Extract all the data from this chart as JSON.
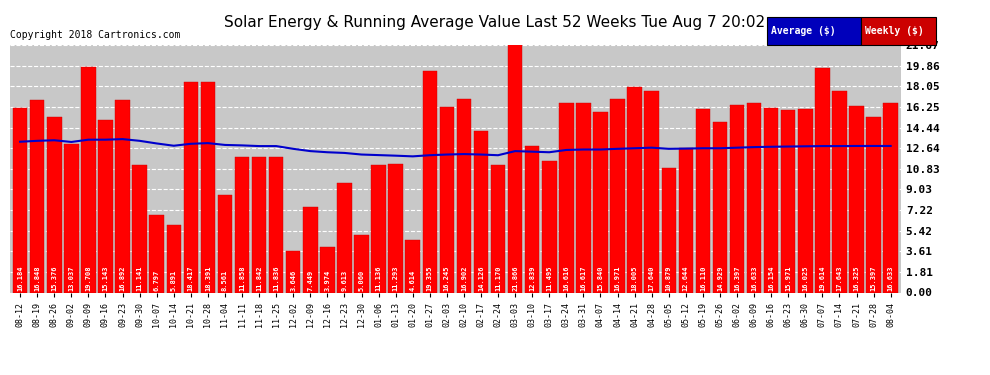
{
  "title": "Solar Energy & Running Average Value Last 52 Weeks Tue Aug 7 20:02",
  "copyright": "Copyright 2018 Cartronics.com",
  "bar_color": "#ff0000",
  "avg_line_color": "#0000cc",
  "background_color": "#ffffff",
  "plot_bg_color": "#c8c8c8",
  "grid_color": "#ffffff",
  "ytick_values": [
    0.0,
    1.81,
    3.61,
    5.42,
    7.22,
    9.03,
    10.83,
    12.64,
    14.44,
    16.25,
    18.05,
    19.86,
    21.67
  ],
  "ytick_labels": [
    "0.00",
    "1.81",
    "3.61",
    "5.42",
    "7.22",
    "9.03",
    "10.83",
    "12.64",
    "14.44",
    "16.25",
    "18.05",
    "19.86",
    "21.67"
  ],
  "categories": [
    "08-12",
    "08-19",
    "08-26",
    "09-02",
    "09-09",
    "09-16",
    "09-23",
    "09-30",
    "10-07",
    "10-14",
    "10-21",
    "10-28",
    "11-04",
    "11-11",
    "11-18",
    "11-25",
    "12-02",
    "12-09",
    "12-16",
    "12-23",
    "12-30",
    "01-06",
    "01-13",
    "01-20",
    "01-27",
    "02-03",
    "02-10",
    "02-17",
    "02-24",
    "03-03",
    "03-10",
    "03-17",
    "03-24",
    "03-31",
    "04-07",
    "04-14",
    "04-21",
    "04-28",
    "05-05",
    "05-12",
    "05-19",
    "05-26",
    "06-02",
    "06-09",
    "06-16",
    "06-23",
    "06-30",
    "07-07",
    "07-14",
    "07-21",
    "07-28",
    "08-04"
  ],
  "bar_values": [
    16.184,
    16.848,
    15.376,
    13.037,
    19.708,
    15.143,
    16.892,
    11.141,
    6.797,
    5.891,
    18.417,
    18.391,
    8.561,
    11.858,
    11.842,
    11.836,
    3.646,
    7.449,
    3.974,
    9.613,
    5.06,
    11.136,
    11.293,
    4.614,
    19.355,
    16.245,
    16.902,
    14.126,
    11.17,
    21.866,
    12.839,
    11.495,
    16.616,
    16.617,
    15.84,
    16.971,
    18.005,
    17.64,
    10.879,
    12.644,
    16.11,
    14.929,
    16.397,
    16.633,
    16.154,
    15.971,
    16.025,
    19.614,
    17.643,
    16.325,
    15.397,
    16.633
  ],
  "running_avg": [
    13.2,
    13.28,
    13.33,
    13.18,
    13.38,
    13.38,
    13.43,
    13.28,
    13.05,
    12.85,
    13.02,
    13.08,
    12.92,
    12.88,
    12.82,
    12.82,
    12.58,
    12.38,
    12.28,
    12.22,
    12.08,
    12.03,
    11.98,
    11.92,
    12.02,
    12.08,
    12.12,
    12.08,
    12.02,
    12.38,
    12.33,
    12.28,
    12.48,
    12.52,
    12.52,
    12.58,
    12.63,
    12.68,
    12.58,
    12.6,
    12.63,
    12.63,
    12.68,
    12.73,
    12.76,
    12.78,
    12.8,
    12.82,
    12.82,
    12.83,
    12.83,
    12.83
  ],
  "ylim_max": 21.67,
  "legend_avg_bg": "#0000bb",
  "legend_weekly_bg": "#cc0000",
  "title_fontsize": 11,
  "copyright_fontsize": 7,
  "ytick_fontsize": 8,
  "xtick_fontsize": 6,
  "bar_label_fontsize": 5
}
